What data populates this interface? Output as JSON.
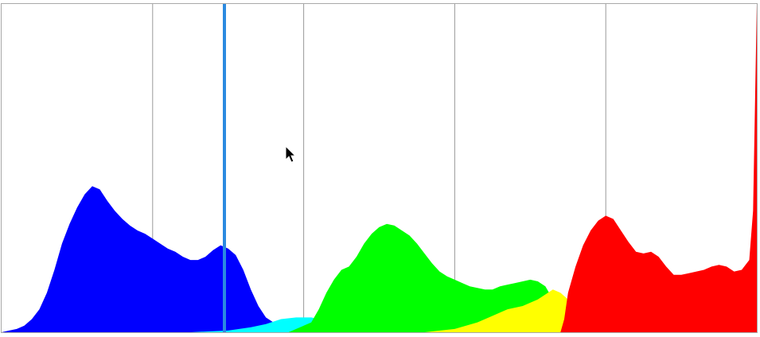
{
  "histogram": {
    "grid_divisions": 5,
    "marker_position_fraction": 0.295,
    "cursor": {
      "visible": true,
      "icon": "arrow-cursor-icon"
    },
    "colors": {
      "frame": "#a8a8a8",
      "grid": "#9a9a9a",
      "marker": "#2b8ae0",
      "blue": "#0000ff",
      "cyan": "#00ffff",
      "green": "#00ff00",
      "yellow": "#ffff00",
      "red": "#ff0000",
      "black": "#000000"
    },
    "channels": [
      {
        "name": "black",
        "color": "#000000",
        "points": [
          [
            0,
            0
          ],
          [
            0.55,
            0
          ],
          [
            0.6,
            0.005
          ],
          [
            0.7,
            0.01
          ],
          [
            0.8,
            0.01
          ],
          [
            0.9,
            0.015
          ],
          [
            0.95,
            0.025
          ],
          [
            0.98,
            0.03
          ],
          [
            0.99,
            0.05
          ],
          [
            1.0,
            0.06
          ]
        ]
      },
      {
        "name": "blue",
        "color": "#0000ff",
        "points": [
          [
            0.0,
            0.0
          ],
          [
            0.01,
            0.005
          ],
          [
            0.02,
            0.01
          ],
          [
            0.03,
            0.02
          ],
          [
            0.04,
            0.04
          ],
          [
            0.05,
            0.07
          ],
          [
            0.06,
            0.12
          ],
          [
            0.07,
            0.19
          ],
          [
            0.08,
            0.27
          ],
          [
            0.09,
            0.33
          ],
          [
            0.1,
            0.38
          ],
          [
            0.11,
            0.42
          ],
          [
            0.12,
            0.445
          ],
          [
            0.13,
            0.435
          ],
          [
            0.14,
            0.4
          ],
          [
            0.15,
            0.37
          ],
          [
            0.16,
            0.345
          ],
          [
            0.17,
            0.325
          ],
          [
            0.18,
            0.31
          ],
          [
            0.19,
            0.3
          ],
          [
            0.2,
            0.285
          ],
          [
            0.21,
            0.27
          ],
          [
            0.22,
            0.255
          ],
          [
            0.23,
            0.245
          ],
          [
            0.24,
            0.23
          ],
          [
            0.25,
            0.22
          ],
          [
            0.26,
            0.22
          ],
          [
            0.27,
            0.23
          ],
          [
            0.28,
            0.25
          ],
          [
            0.29,
            0.265
          ],
          [
            0.3,
            0.255
          ],
          [
            0.31,
            0.235
          ],
          [
            0.32,
            0.19
          ],
          [
            0.33,
            0.13
          ],
          [
            0.34,
            0.08
          ],
          [
            0.35,
            0.045
          ],
          [
            0.36,
            0.03
          ],
          [
            0.37,
            0.02
          ],
          [
            0.38,
            0.015
          ],
          [
            0.39,
            0.012
          ],
          [
            0.4,
            0.01
          ],
          [
            0.45,
            0.008
          ],
          [
            0.5,
            0.005
          ],
          [
            0.55,
            0.004
          ],
          [
            0.6,
            0.002
          ],
          [
            0.7,
            0.0
          ],
          [
            1.0,
            0.0
          ]
        ]
      },
      {
        "name": "cyan",
        "color": "#00ffff",
        "points": [
          [
            0.25,
            0.0
          ],
          [
            0.3,
            0.005
          ],
          [
            0.33,
            0.015
          ],
          [
            0.35,
            0.025
          ],
          [
            0.37,
            0.04
          ],
          [
            0.39,
            0.045
          ],
          [
            0.41,
            0.045
          ],
          [
            0.43,
            0.035
          ],
          [
            0.45,
            0.03
          ],
          [
            0.5,
            0.02
          ],
          [
            0.55,
            0.015
          ],
          [
            0.6,
            0.01
          ],
          [
            0.65,
            0.005
          ],
          [
            0.7,
            0.0
          ]
        ]
      },
      {
        "name": "green",
        "color": "#00ff00",
        "points": [
          [
            0.38,
            0.0
          ],
          [
            0.39,
            0.01
          ],
          [
            0.41,
            0.03
          ],
          [
            0.42,
            0.07
          ],
          [
            0.43,
            0.12
          ],
          [
            0.44,
            0.16
          ],
          [
            0.45,
            0.19
          ],
          [
            0.46,
            0.2
          ],
          [
            0.47,
            0.23
          ],
          [
            0.48,
            0.27
          ],
          [
            0.49,
            0.3
          ],
          [
            0.5,
            0.32
          ],
          [
            0.51,
            0.33
          ],
          [
            0.52,
            0.325
          ],
          [
            0.53,
            0.31
          ],
          [
            0.54,
            0.295
          ],
          [
            0.55,
            0.27
          ],
          [
            0.56,
            0.24
          ],
          [
            0.57,
            0.21
          ],
          [
            0.58,
            0.185
          ],
          [
            0.59,
            0.17
          ],
          [
            0.6,
            0.16
          ],
          [
            0.61,
            0.15
          ],
          [
            0.62,
            0.14
          ],
          [
            0.63,
            0.135
          ],
          [
            0.64,
            0.13
          ],
          [
            0.65,
            0.13
          ],
          [
            0.66,
            0.14
          ],
          [
            0.67,
            0.145
          ],
          [
            0.68,
            0.15
          ],
          [
            0.69,
            0.155
          ],
          [
            0.7,
            0.16
          ],
          [
            0.71,
            0.155
          ],
          [
            0.72,
            0.14
          ],
          [
            0.73,
            0.1
          ],
          [
            0.74,
            0.05
          ],
          [
            0.75,
            0.02
          ],
          [
            0.76,
            0.0
          ]
        ]
      },
      {
        "name": "yellow",
        "color": "#ffff00",
        "points": [
          [
            0.56,
            0.0
          ],
          [
            0.6,
            0.01
          ],
          [
            0.63,
            0.03
          ],
          [
            0.65,
            0.05
          ],
          [
            0.67,
            0.07
          ],
          [
            0.69,
            0.08
          ],
          [
            0.71,
            0.1
          ],
          [
            0.73,
            0.13
          ],
          [
            0.74,
            0.12
          ],
          [
            0.75,
            0.1
          ],
          [
            0.76,
            0.08
          ],
          [
            0.77,
            0.065
          ],
          [
            0.78,
            0.055
          ],
          [
            0.79,
            0.045
          ],
          [
            0.8,
            0.035
          ],
          [
            0.82,
            0.03
          ],
          [
            0.85,
            0.028
          ],
          [
            0.9,
            0.025
          ],
          [
            0.93,
            0.03
          ],
          [
            0.95,
            0.035
          ],
          [
            0.97,
            0.05
          ],
          [
            0.98,
            0.08
          ],
          [
            0.99,
            0.14
          ],
          [
            0.995,
            0.25
          ],
          [
            1.0,
            0.32
          ]
        ]
      },
      {
        "name": "red",
        "color": "#ff0000",
        "points": [
          [
            0.74,
            0.0
          ],
          [
            0.745,
            0.04
          ],
          [
            0.75,
            0.12
          ],
          [
            0.76,
            0.2
          ],
          [
            0.77,
            0.265
          ],
          [
            0.78,
            0.31
          ],
          [
            0.79,
            0.34
          ],
          [
            0.8,
            0.355
          ],
          [
            0.81,
            0.345
          ],
          [
            0.82,
            0.31
          ],
          [
            0.83,
            0.275
          ],
          [
            0.84,
            0.245
          ],
          [
            0.85,
            0.24
          ],
          [
            0.86,
            0.245
          ],
          [
            0.87,
            0.23
          ],
          [
            0.88,
            0.2
          ],
          [
            0.89,
            0.175
          ],
          [
            0.9,
            0.175
          ],
          [
            0.91,
            0.18
          ],
          [
            0.92,
            0.185
          ],
          [
            0.93,
            0.19
          ],
          [
            0.94,
            0.2
          ],
          [
            0.95,
            0.205
          ],
          [
            0.96,
            0.2
          ],
          [
            0.97,
            0.185
          ],
          [
            0.98,
            0.19
          ],
          [
            0.99,
            0.22
          ],
          [
            0.995,
            0.37
          ],
          [
            1.0,
            1.0
          ]
        ]
      }
    ]
  }
}
